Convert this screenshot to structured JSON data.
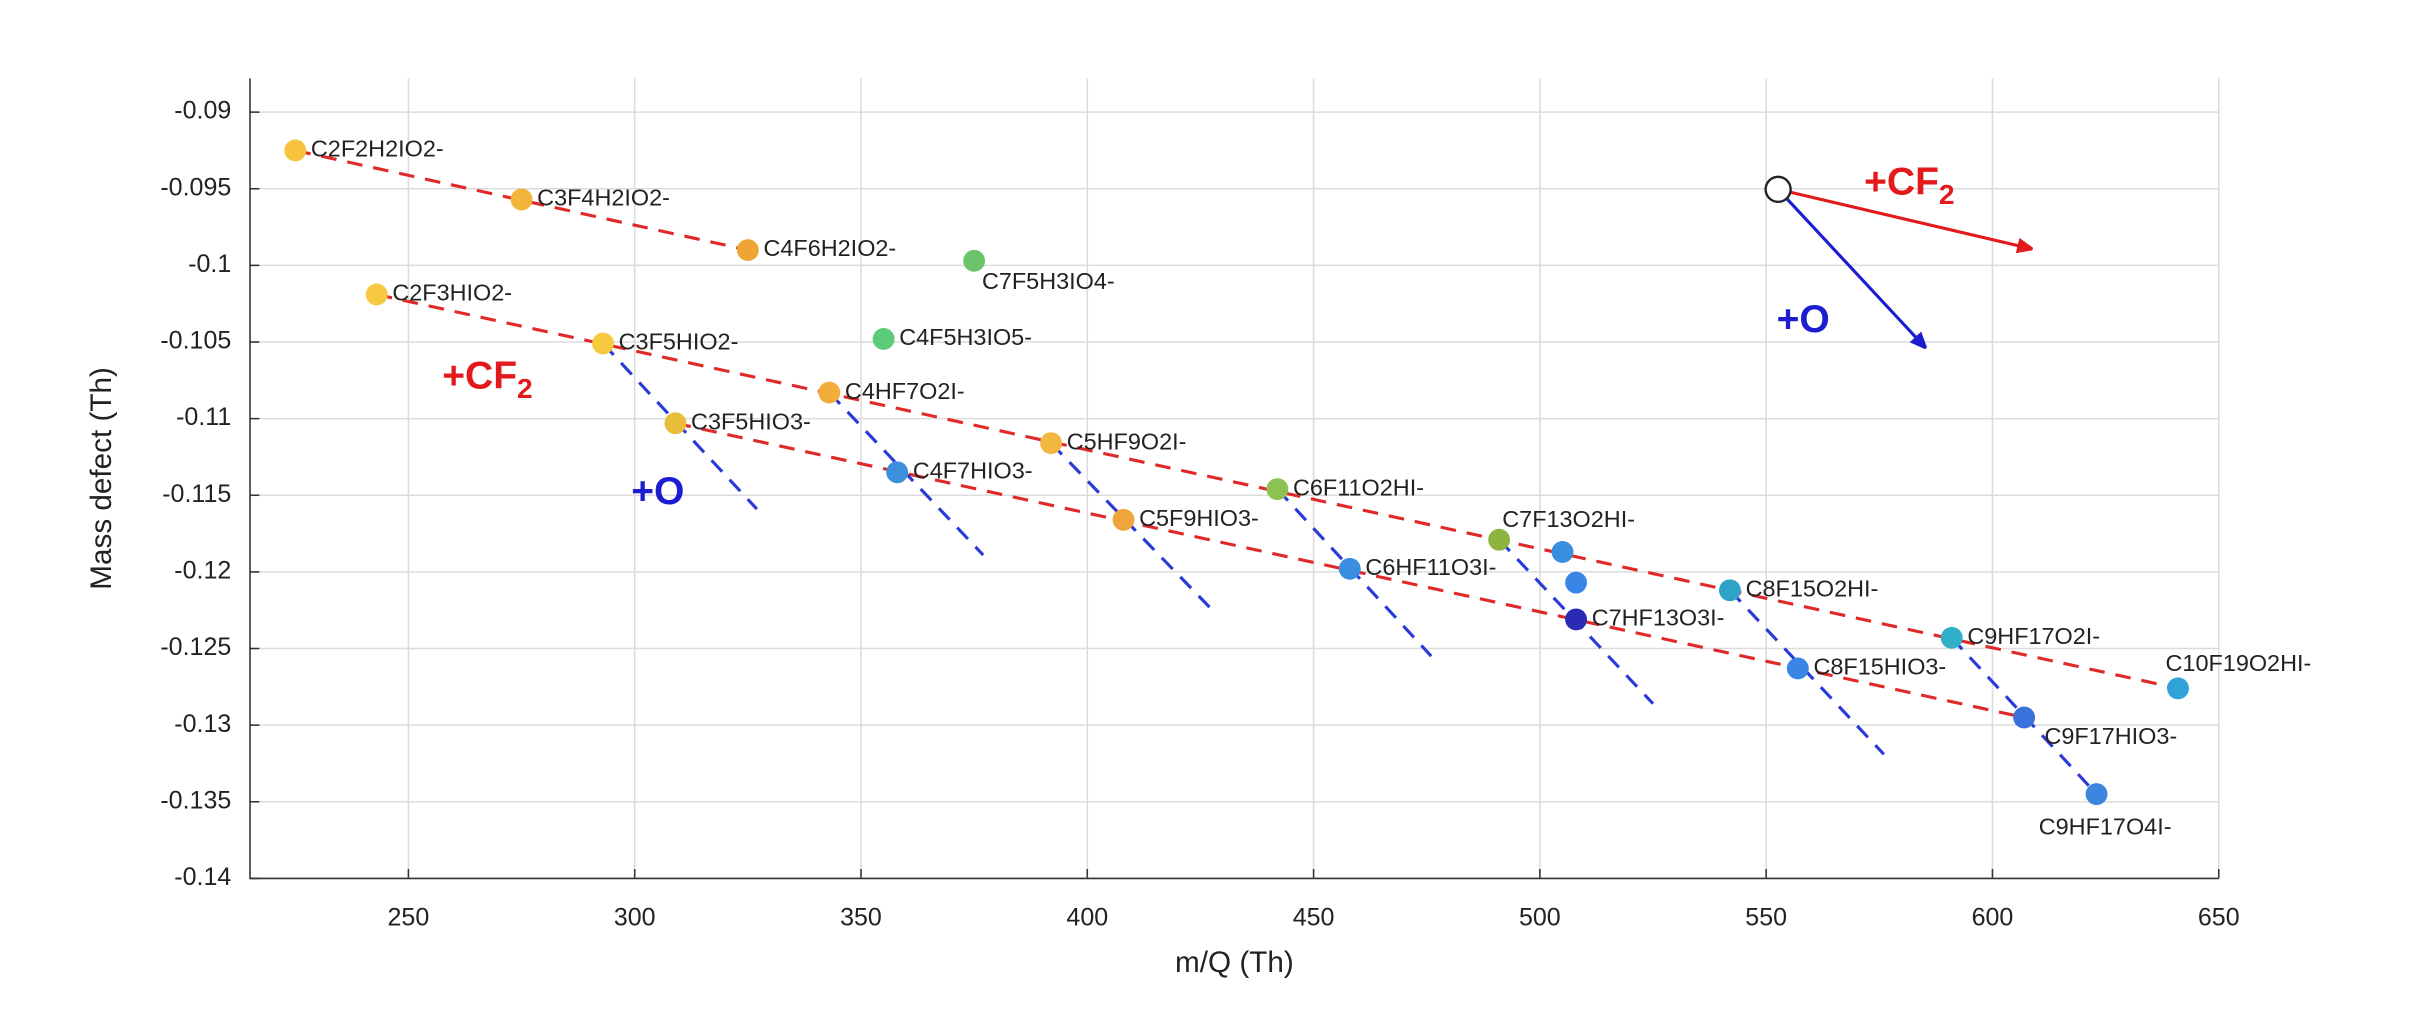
{
  "chart_data": {
    "type": "scatter",
    "x_label": "m/Q (Th)",
    "y_label": "Mass defect (Th)",
    "xlim": [
      215,
      650
    ],
    "ylim": [
      -0.14,
      -0.0878
    ],
    "xticks": [
      250,
      300,
      350,
      400,
      450,
      500,
      550,
      600,
      650
    ],
    "yticks": [
      -0.09,
      -0.095,
      -0.1,
      -0.105,
      -0.11,
      -0.115,
      -0.12,
      -0.125,
      -0.13,
      -0.135,
      -0.14
    ],
    "grid": true,
    "labels": [
      "C2F2H2IO2-",
      "C3F4H2IO2-",
      "C4F6H2IO2-",
      "C7F5H3IO4-",
      "C2F3HIO2-",
      "C4F5H3IO5-",
      "C3F5HIO2-",
      "C4HF7O2I-",
      "C3F5HIO3-",
      "C5HF9O2I-",
      "C4F7HIO3-",
      "C6F11O2HI-",
      "C5F9HIO3-",
      "C7F13O2HI-",
      null,
      null,
      "C6HF11O3I-",
      "C7HF13O3I-",
      "C8F15O2HI-",
      "C9HF17O2I-",
      "C8F15HIO3-",
      "C10F19O2HI-",
      "C9F17HIO3-",
      "C9HF17O4I-"
    ],
    "x": [
      225,
      275,
      325,
      375,
      243,
      355,
      293,
      343,
      309,
      392,
      358,
      442,
      408,
      491,
      505,
      508,
      458,
      508,
      542,
      591,
      557,
      641,
      607,
      623
    ],
    "values": [
      -0.0925,
      -0.0957,
      -0.099,
      -0.0997,
      -0.1019,
      -0.1048,
      -0.1051,
      -0.1083,
      -0.1103,
      -0.1116,
      -0.1135,
      -0.1146,
      -0.1166,
      -0.1179,
      -0.1187,
      -0.1207,
      -0.1198,
      -0.1231,
      -0.1212,
      -0.1243,
      -0.1263,
      -0.1276,
      -0.1295,
      -0.1345
    ],
    "colors": [
      "#f7c33c",
      "#f2b53a",
      "#efa534",
      "#6cc46a",
      "#f7c940",
      "#5ccb7a",
      "#f7c940",
      "#f2ad3c",
      "#e8be3a",
      "#f2b840",
      "#3b8fdc",
      "#8cc252",
      "#f0a53a",
      "#8cb43e",
      "#3a8ee0",
      "#3a86e6",
      "#3a8ee0",
      "#2a2ab4",
      "#2fa2c8",
      "#2fb0c8",
      "#3a86e6",
      "#2fa2d8",
      "#3a72dc",
      "#3a86e0"
    ],
    "lines": [
      {
        "color": "#e02a2a",
        "x": [
          225,
          325
        ],
        "values": [
          -0.0925,
          -0.099
        ]
      },
      {
        "color": "#e02a2a",
        "x": [
          243,
          641
        ],
        "values": [
          -0.1019,
          -0.1276
        ]
      },
      {
        "color": "#e02a2a",
        "x": [
          309,
          607
        ],
        "values": [
          -0.1103,
          -0.1295
        ]
      },
      {
        "color": "#2a3ad8",
        "x": [
          293,
          327
        ],
        "values": [
          -0.1051,
          -0.1159
        ]
      },
      {
        "color": "#2a3ad8",
        "x": [
          343,
          377
        ],
        "values": [
          -0.1083,
          -0.1189
        ]
      },
      {
        "color": "#2a3ad8",
        "x": [
          392,
          427
        ],
        "values": [
          -0.1116,
          -0.1223
        ]
      },
      {
        "color": "#2a3ad8",
        "x": [
          442,
          476
        ],
        "values": [
          -0.1146,
          -0.1255
        ]
      },
      {
        "color": "#2a3ad8",
        "x": [
          491,
          525
        ],
        "values": [
          -0.1179,
          -0.1286
        ]
      },
      {
        "color": "#2a3ad8",
        "x": [
          542,
          576
        ],
        "values": [
          -0.1212,
          -0.1319
        ]
      },
      {
        "color": "#2a3ad8",
        "x": [
          591,
          623
        ],
        "values": [
          -0.1243,
          -0.1345
        ]
      }
    ],
    "annotations": [
      {
        "text": "+CF",
        "sub": "2",
        "color": "#e31a1c"
      },
      {
        "text": "+O",
        "color": "#1c1cd0"
      },
      {
        "text": "+CF",
        "sub": "2",
        "color": "#e31a1c"
      },
      {
        "text": "+O",
        "color": "#1c1cd0"
      }
    ]
  }
}
